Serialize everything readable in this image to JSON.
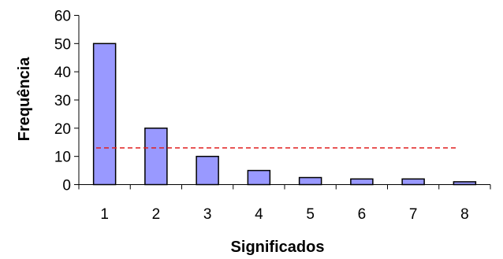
{
  "chart_data": {
    "type": "bar",
    "categories": [
      "1",
      "2",
      "3",
      "4",
      "5",
      "6",
      "7",
      "8"
    ],
    "values": [
      50,
      20,
      10,
      5,
      2.5,
      2,
      2,
      1
    ],
    "xlabel": "Significados",
    "ylabel": "Frequência",
    "ylim": [
      0,
      60
    ],
    "yticks": [
      "0",
      "10",
      "20",
      "30",
      "40",
      "50",
      "60"
    ],
    "reference_line": {
      "value": 13,
      "style": "dashed",
      "color": "#e02020"
    },
    "bar_color": "#9999ff",
    "bar_edge_color": "#000000",
    "grid": false,
    "legend": "none"
  }
}
